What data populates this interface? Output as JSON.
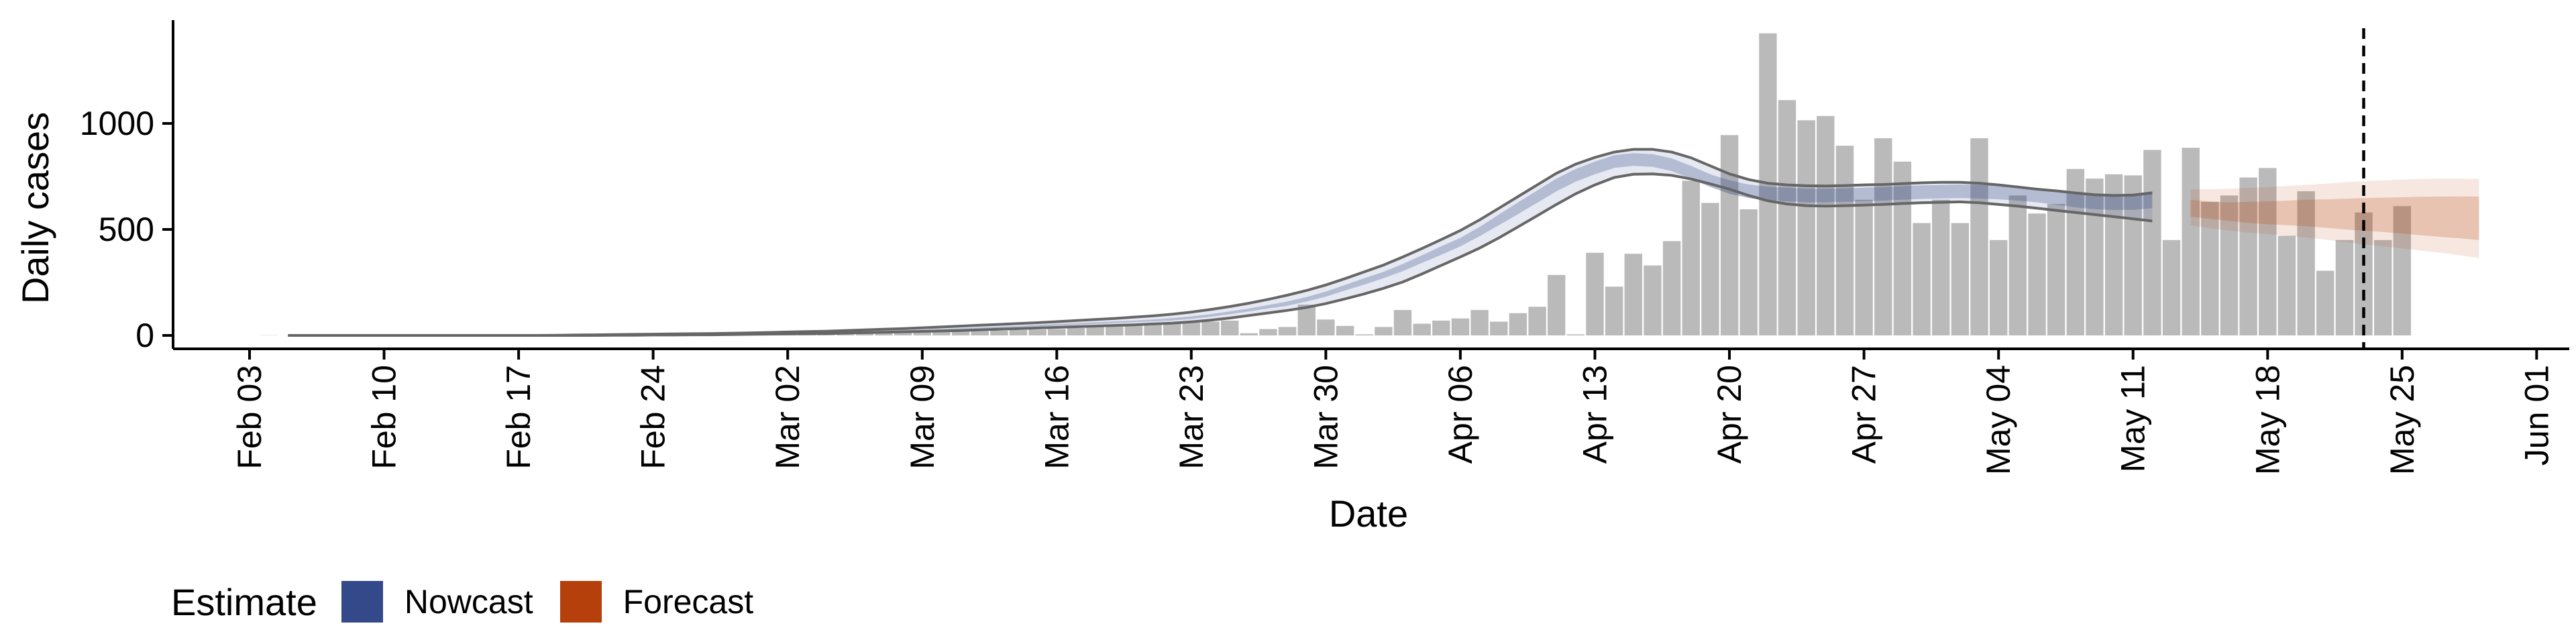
{
  "chart_data": {
    "type": "bar",
    "xlabel": "Date",
    "ylabel": "Daily cases",
    "x_start": "2020-02-03",
    "x_ticks": [
      "Feb 03",
      "Feb 10",
      "Feb 17",
      "Feb 24",
      "Mar 02",
      "Mar 09",
      "Mar 16",
      "Mar 23",
      "Mar 30",
      "Apr 06",
      "Apr 13",
      "Apr 20",
      "Apr 27",
      "May 04",
      "May 11",
      "May 18",
      "May 25",
      "Jun 01"
    ],
    "y_ticks": [
      0,
      500,
      1000
    ],
    "ylim": [
      -60,
      1500
    ],
    "grid": false,
    "vline_date": "2020-05-23",
    "bars": {
      "start_date": "2020-02-04",
      "values": [
        1,
        0,
        0,
        0,
        0,
        0,
        0,
        0,
        0,
        0,
        0,
        0,
        0,
        0,
        0,
        1,
        1,
        1,
        1,
        2,
        2,
        2,
        3,
        3,
        3,
        4,
        5,
        5,
        6,
        7,
        8,
        9,
        10,
        12,
        14,
        16,
        18,
        20,
        22,
        25,
        28,
        30,
        35,
        40,
        45,
        48,
        50,
        55,
        60,
        65,
        70,
        10,
        30,
        40,
        145,
        75,
        45,
        5,
        40,
        120,
        55,
        70,
        80,
        120,
        65,
        105,
        135,
        285,
        5,
        390,
        230,
        385,
        330,
        445,
        730,
        625,
        945,
        595,
        1425,
        1110,
        1015,
        1035,
        895,
        640,
        930,
        820,
        530,
        640,
        530,
        930,
        450,
        660,
        575,
        620,
        785,
        740,
        760,
        755,
        875,
        450,
        885,
        630,
        660,
        745,
        790,
        470,
        680,
        305,
        450,
        580,
        450,
        610
      ]
    },
    "series": [
      {
        "name": "Nowcast",
        "color": "#34498a",
        "start_date": "2020-02-05",
        "mid": [
          0,
          0,
          0,
          0,
          0,
          0,
          0,
          0,
          0,
          0,
          0,
          0,
          0,
          0,
          1,
          1,
          2,
          2,
          3,
          3,
          4,
          5,
          6,
          7,
          8,
          9,
          10,
          12,
          14,
          16,
          18,
          20,
          22,
          25,
          28,
          31,
          35,
          38,
          42,
          46,
          50,
          54,
          58,
          62,
          66,
          70,
          76,
          84,
          94,
          106,
          120,
          135,
          150,
          170,
          195,
          225,
          255,
          285,
          320,
          360,
          400,
          440,
          490,
          545,
          600,
          655,
          710,
          755,
          790,
          820,
          830,
          825,
          805,
          770,
          730,
          700,
          680,
          670,
          665,
          660,
          660,
          662,
          665,
          668,
          672,
          676,
          678,
          680,
          678,
          674,
          668,
          660,
          650,
          640,
          632,
          628,
          630,
          640
        ],
        "low": [
          0,
          0,
          0,
          0,
          0,
          0,
          0,
          0,
          0,
          0,
          0,
          0,
          0,
          0,
          0,
          0,
          1,
          1,
          2,
          2,
          3,
          4,
          5,
          6,
          7,
          8,
          9,
          10,
          12,
          14,
          16,
          18,
          20,
          22,
          25,
          28,
          32,
          35,
          38,
          42,
          46,
          50,
          54,
          58,
          62,
          66,
          70,
          78,
          88,
          100,
          113,
          127,
          140,
          160,
          183,
          212,
          240,
          270,
          303,
          342,
          380,
          420,
          468,
          520,
          572,
          626,
          680,
          725,
          760,
          790,
          800,
          795,
          775,
          740,
          700,
          668,
          648,
          638,
          633,
          628,
          628,
          630,
          633,
          636,
          640,
          644,
          646,
          648,
          646,
          642,
          636,
          628,
          616,
          604,
          596,
          592,
          592,
          600
        ],
        "high": [
          0,
          0,
          0,
          0,
          0,
          0,
          0,
          0,
          0,
          0,
          0,
          0,
          0,
          0,
          1,
          1,
          2,
          2,
          3,
          4,
          5,
          6,
          7,
          8,
          9,
          10,
          12,
          14,
          16,
          18,
          20,
          22,
          25,
          28,
          31,
          34,
          38,
          41,
          45,
          50,
          54,
          58,
          62,
          66,
          70,
          75,
          82,
          90,
          100,
          113,
          127,
          143,
          160,
          181,
          207,
          238,
          270,
          300,
          337,
          378,
          420,
          460,
          512,
          570,
          628,
          684,
          740,
          785,
          820,
          850,
          860,
          855,
          835,
          800,
          760,
          732,
          712,
          702,
          697,
          692,
          692,
          694,
          697,
          700,
          704,
          708,
          710,
          712,
          710,
          706,
          700,
          692,
          684,
          676,
          668,
          664,
          668,
          680
        ],
        "line_low": [
          0,
          0,
          0,
          0,
          0,
          0,
          0,
          0,
          0,
          0,
          0,
          0,
          0,
          0,
          0,
          0,
          0,
          1,
          1,
          2,
          2,
          3,
          3,
          4,
          5,
          6,
          7,
          8,
          9,
          11,
          13,
          15,
          17,
          19,
          21,
          23,
          26,
          29,
          32,
          35,
          38,
          41,
          44,
          47,
          50,
          54,
          58,
          64,
          72,
          82,
          94,
          106,
          118,
          132,
          150,
          172,
          196,
          222,
          252,
          290,
          330,
          370,
          412,
          460,
          512,
          565,
          618,
          668,
          710,
          745,
          760,
          762,
          755,
          738,
          715,
          690,
          660,
          635,
          620,
          612,
          610,
          612,
          615,
          618,
          622,
          626,
          628,
          630,
          626,
          618,
          610,
          600,
          590,
          580,
          570,
          560,
          550,
          540
        ],
        "line_high": [
          0,
          0,
          0,
          0,
          0,
          0,
          0,
          0,
          0,
          0,
          0,
          0,
          0,
          0,
          1,
          2,
          3,
          4,
          5,
          6,
          7,
          8,
          9,
          10,
          12,
          14,
          16,
          18,
          20,
          23,
          26,
          29,
          32,
          36,
          40,
          44,
          48,
          52,
          56,
          60,
          65,
          70,
          75,
          80,
          86,
          92,
          100,
          110,
          122,
          136,
          152,
          170,
          190,
          212,
          238,
          268,
          300,
          332,
          370,
          410,
          452,
          495,
          545,
          600,
          655,
          710,
          765,
          808,
          840,
          865,
          878,
          878,
          865,
          838,
          800,
          762,
          735,
          718,
          710,
          706,
          705,
          707,
          710,
          712,
          716,
          720,
          722,
          722,
          718,
          710,
          700,
          690,
          682,
          672,
          664,
          660,
          662,
          672
        ]
      },
      {
        "name": "Forecast",
        "color": "#b5400b",
        "start_date": "2020-05-14",
        "mid": [
          600,
          590,
          585,
          580,
          575,
          572,
          570,
          566,
          562,
          558,
          555,
          550,
          546,
          542,
          538,
          534
        ],
        "low": [
          560,
          550,
          540,
          530,
          525,
          520,
          515,
          508,
          500,
          494,
          488,
          480,
          472,
          465,
          458,
          450
        ],
        "high": [
          640,
          632,
          628,
          630,
          632,
          636,
          640,
          642,
          645,
          648,
          650,
          652,
          654,
          655,
          656,
          655
        ],
        "outer_low": [
          520,
          505,
          495,
          485,
          478,
          470,
          462,
          452,
          440,
          430,
          420,
          410,
          400,
          390,
          378,
          365
        ],
        "outer_high": [
          690,
          690,
          692,
          696,
          700,
          705,
          710,
          716,
          722,
          728,
          732,
          735,
          738,
          740,
          740,
          738
        ]
      }
    ]
  },
  "legend": {
    "title": "Estimate",
    "items": [
      {
        "label": "Nowcast",
        "color": "#34498a"
      },
      {
        "label": "Forecast",
        "color": "#b5400b"
      }
    ]
  }
}
